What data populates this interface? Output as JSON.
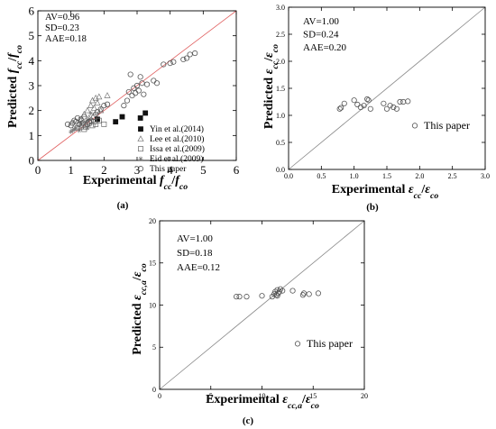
{
  "chart_data": [
    {
      "id": "a",
      "panel_label": "(a)",
      "type": "scatter",
      "xlabel_prefix": "Experimental ",
      "xlabel_num": "f",
      "xlabel_num_sub": "cc",
      "xlabel_den": "f",
      "xlabel_den_sub": "co",
      "ylabel_prefix": "Predicted ",
      "ylabel_num": "f",
      "ylabel_num_sub": "cc",
      "ylabel_den": "f",
      "ylabel_den_sub": "co",
      "xlim": [
        0,
        6
      ],
      "ylim": [
        0,
        6
      ],
      "xticks": [
        "0",
        "1",
        "2",
        "3",
        "4",
        "5",
        "6"
      ],
      "yticks": [
        "0",
        "1",
        "2",
        "3",
        "4",
        "5",
        "6"
      ],
      "reference_line": "y = x",
      "reference_color": "#e06060",
      "stats": [
        "AV=0.96",
        "SD=0.23",
        "AAE=0.18"
      ],
      "series": [
        {
          "name": "Yin et al.(2014)",
          "marker": "filled-square",
          "points": [
            [
              1.8,
              1.65
            ],
            [
              2.35,
              1.55
            ],
            [
              2.55,
              1.75
            ],
            [
              3.1,
              1.7
            ],
            [
              3.25,
              1.9
            ]
          ]
        },
        {
          "name": "Lee et al.(2010)",
          "marker": "triangle",
          "points": [
            [
              1.4,
              1.85
            ],
            [
              1.5,
              2.0
            ],
            [
              1.6,
              2.2
            ],
            [
              1.65,
              2.4
            ],
            [
              1.7,
              2.1
            ],
            [
              1.75,
              2.5
            ],
            [
              1.8,
              2.3
            ],
            [
              1.85,
              2.55
            ],
            [
              1.55,
              1.7
            ],
            [
              2.1,
              2.6
            ],
            [
              1.9,
              2.0
            ],
            [
              1.3,
              1.6
            ]
          ]
        },
        {
          "name": "Issa et al.(2009)",
          "marker": "square",
          "points": [
            [
              1.2,
              1.3
            ],
            [
              1.3,
              1.35
            ],
            [
              1.35,
              1.4
            ],
            [
              1.45,
              1.35
            ],
            [
              1.55,
              1.5
            ],
            [
              1.65,
              1.4
            ],
            [
              1.7,
              1.55
            ],
            [
              1.75,
              1.45
            ],
            [
              1.85,
              1.6
            ],
            [
              2.0,
              1.45
            ],
            [
              1.4,
              1.25
            ]
          ]
        },
        {
          "name": "Eid et al.(2009)",
          "marker": "star",
          "points": [
            [
              1.0,
              1.15
            ],
            [
              1.05,
              1.2
            ],
            [
              1.1,
              1.25
            ],
            [
              1.15,
              1.3
            ],
            [
              1.25,
              1.2
            ],
            [
              1.3,
              1.5
            ],
            [
              1.45,
              1.55
            ],
            [
              1.55,
              1.65
            ],
            [
              1.6,
              1.9
            ],
            [
              1.5,
              1.3
            ]
          ]
        },
        {
          "name": "This paper",
          "marker": "circle",
          "points": [
            [
              0.9,
              1.45
            ],
            [
              1.0,
              1.4
            ],
            [
              1.05,
              1.5
            ],
            [
              1.1,
              1.6
            ],
            [
              1.15,
              1.55
            ],
            [
              1.2,
              1.7
            ],
            [
              1.25,
              1.45
            ],
            [
              1.3,
              1.65
            ],
            [
              1.35,
              1.5
            ],
            [
              1.4,
              1.75
            ],
            [
              1.5,
              1.45
            ],
            [
              1.55,
              1.55
            ],
            [
              1.6,
              1.6
            ],
            [
              1.7,
              1.75
            ],
            [
              1.75,
              1.85
            ],
            [
              1.8,
              1.95
            ],
            [
              1.9,
              2.05
            ],
            [
              2.0,
              2.2
            ],
            [
              2.1,
              2.25
            ],
            [
              2.6,
              2.2
            ],
            [
              2.7,
              2.4
            ],
            [
              2.75,
              2.75
            ],
            [
              2.8,
              3.45
            ],
            [
              2.85,
              2.6
            ],
            [
              2.9,
              2.9
            ],
            [
              2.95,
              2.7
            ],
            [
              3.0,
              3.0
            ],
            [
              3.05,
              2.8
            ],
            [
              3.1,
              3.35
            ],
            [
              3.15,
              3.1
            ],
            [
              3.2,
              2.65
            ],
            [
              3.3,
              3.05
            ],
            [
              3.5,
              3.2
            ],
            [
              3.6,
              3.1
            ],
            [
              3.8,
              3.85
            ],
            [
              4.0,
              3.9
            ],
            [
              4.1,
              3.95
            ],
            [
              4.4,
              4.05
            ],
            [
              4.5,
              4.1
            ],
            [
              4.6,
              4.25
            ],
            [
              4.75,
              4.3
            ]
          ]
        }
      ]
    },
    {
      "id": "b",
      "panel_label": "(b)",
      "type": "scatter",
      "xlabel_prefix": "Experimental ",
      "xlabel_num": "ε",
      "xlabel_num_sub": "cc",
      "xlabel_den": "ε",
      "xlabel_den_sub": "co",
      "ylabel_prefix": "Predicted ",
      "ylabel_num": "ε",
      "ylabel_num_sub": "cc",
      "ylabel_den": "ε",
      "ylabel_den_sub": "co",
      "xlim": [
        0,
        3.0
      ],
      "ylim": [
        0,
        3.0
      ],
      "xticks": [
        "0.0",
        "0.5",
        "1.0",
        "1.5",
        "2.0",
        "2.5",
        "3.0"
      ],
      "yticks": [
        "0.0",
        "0.5",
        "1.0",
        "1.5",
        "2.0",
        "2.5",
        "3.0"
      ],
      "reference_line": "y = x",
      "reference_color": "#888888",
      "stats": [
        "AV=1.00",
        "SD=0.24",
        "AAE=0.20"
      ],
      "series": [
        {
          "name": "This paper",
          "marker": "circle",
          "points": [
            [
              0.78,
              1.12
            ],
            [
              0.8,
              1.14
            ],
            [
              0.85,
              1.22
            ],
            [
              1.0,
              1.28
            ],
            [
              1.05,
              1.2
            ],
            [
              1.1,
              1.15
            ],
            [
              1.15,
              1.18
            ],
            [
              1.2,
              1.3
            ],
            [
              1.22,
              1.28
            ],
            [
              1.25,
              1.12
            ],
            [
              1.45,
              1.22
            ],
            [
              1.5,
              1.12
            ],
            [
              1.55,
              1.18
            ],
            [
              1.6,
              1.15
            ],
            [
              1.65,
              1.12
            ],
            [
              1.7,
              1.25
            ],
            [
              1.75,
              1.25
            ],
            [
              1.82,
              1.26
            ]
          ]
        }
      ]
    },
    {
      "id": "c",
      "panel_label": "(c)",
      "type": "scatter",
      "xlabel_prefix": "Experimental ",
      "xlabel_num": "ε",
      "xlabel_num_sub": "cc,a",
      "xlabel_den": "ε",
      "xlabel_den_sub": "co",
      "ylabel_prefix": "Predicted ",
      "ylabel_num": "ε",
      "ylabel_num_sub": "cc,a",
      "ylabel_den": "ε",
      "ylabel_den_sub": "co",
      "xlim": [
        0,
        20
      ],
      "ylim": [
        0,
        20
      ],
      "xticks": [
        "0",
        "5",
        "10",
        "15",
        "20"
      ],
      "yticks": [
        "0",
        "5",
        "10",
        "15",
        "20"
      ],
      "reference_line": "y = x",
      "reference_color": "#888888",
      "stats": [
        "AV=1.00",
        "SD=0.18",
        "AAE=0.12"
      ],
      "series": [
        {
          "name": "This paper",
          "marker": "circle",
          "points": [
            [
              7.5,
              11.0
            ],
            [
              7.8,
              11.0
            ],
            [
              8.5,
              11.0
            ],
            [
              10.0,
              11.1
            ],
            [
              11.0,
              11.0
            ],
            [
              11.2,
              11.3
            ],
            [
              11.3,
              11.6
            ],
            [
              11.4,
              11.2
            ],
            [
              11.5,
              11.8
            ],
            [
              11.5,
              11.1
            ],
            [
              11.6,
              11.4
            ],
            [
              11.7,
              11.6
            ],
            [
              11.8,
              11.9
            ],
            [
              12.0,
              11.7
            ],
            [
              13.0,
              11.7
            ],
            [
              14.0,
              11.2
            ],
            [
              14.1,
              11.4
            ],
            [
              14.6,
              11.3
            ],
            [
              15.5,
              11.4
            ]
          ]
        }
      ]
    }
  ]
}
